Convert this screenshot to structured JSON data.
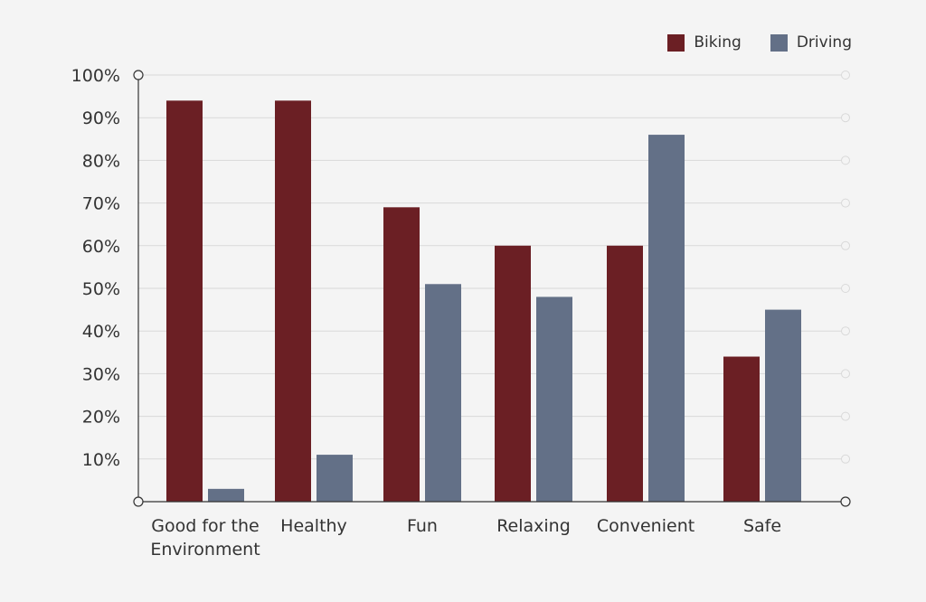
{
  "legend": {
    "biking_label": "Biking",
    "driving_label": "Driving"
  },
  "colors": {
    "biking": "#6b1f24",
    "driving": "#637087",
    "grid": "#d9d9d9",
    "axis": "#333333",
    "background": "#f4f4f4"
  },
  "chart_data": {
    "type": "bar",
    "categories": [
      [
        "Good for the",
        "Environment"
      ],
      [
        "Healthy"
      ],
      [
        "Fun"
      ],
      [
        "Relaxing"
      ],
      [
        "Convenient"
      ],
      [
        "Safe"
      ]
    ],
    "series": [
      {
        "name": "Biking",
        "values": [
          94,
          94,
          69,
          60,
          60,
          34
        ]
      },
      {
        "name": "Driving",
        "values": [
          3,
          11,
          51,
          48,
          86,
          45
        ]
      }
    ],
    "yticks": [
      "100%",
      "90%",
      "80%",
      "70%",
      "60%",
      "50%",
      "40%",
      "30%",
      "20%",
      "10%"
    ],
    "ytick_values": [
      100,
      90,
      80,
      70,
      60,
      50,
      40,
      30,
      20,
      10
    ],
    "ylim": [
      0,
      100
    ],
    "grid": true,
    "legend_position": "top-right",
    "xlabel": "",
    "ylabel": ""
  }
}
